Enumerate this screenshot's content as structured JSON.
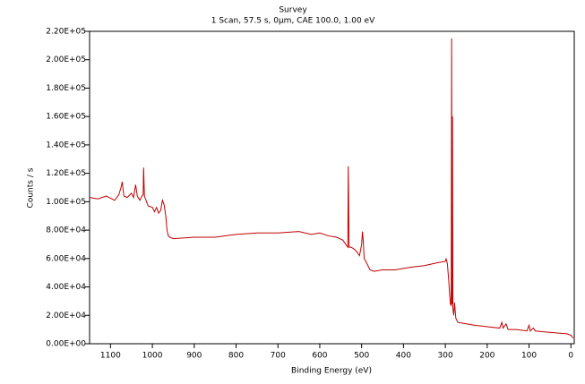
{
  "chart_data": {
    "type": "line",
    "title": "Survey",
    "subtitle": "1 Scan, 57.5 s, 0µm, CAE 100.0, 1.00 eV",
    "x_label": "Binding Energy (eV)",
    "y_label": "Counts / s",
    "xlim": [
      1150,
      -8
    ],
    "ylim": [
      0,
      220000
    ],
    "xticks": [
      1100,
      1000,
      900,
      800,
      700,
      600,
      500,
      400,
      300,
      200,
      100,
      0
    ],
    "yticks": [
      {
        "value": 0,
        "label": "0.00E+00"
      },
      {
        "value": 20000,
        "label": "2.00E+04"
      },
      {
        "value": 40000,
        "label": "4.00E+04"
      },
      {
        "value": 60000,
        "label": "6.00E+04"
      },
      {
        "value": 80000,
        "label": "8.00E+04"
      },
      {
        "value": 100000,
        "label": "1.00E+05"
      },
      {
        "value": 120000,
        "label": "1.20E+05"
      },
      {
        "value": 140000,
        "label": "1.40E+05"
      },
      {
        "value": 160000,
        "label": "1.60E+05"
      },
      {
        "value": 180000,
        "label": "1.80E+05"
      },
      {
        "value": 200000,
        "label": "2.00E+05"
      },
      {
        "value": 220000,
        "label": "2.20E+05"
      }
    ],
    "color": "#c00000",
    "x": [
      1150,
      1130,
      1110,
      1090,
      1080,
      1075,
      1072,
      1068,
      1060,
      1050,
      1045,
      1040,
      1036,
      1030,
      1025,
      1022,
      1021,
      1019,
      1010,
      1000,
      995,
      990,
      985,
      980,
      976,
      972,
      968,
      965,
      962,
      958,
      950,
      900,
      850,
      800,
      750,
      700,
      650,
      620,
      600,
      580,
      560,
      545,
      538,
      533,
      532,
      530,
      525,
      520,
      515,
      510,
      505,
      500,
      498,
      496,
      494,
      490,
      485,
      480,
      470,
      450,
      420,
      400,
      380,
      350,
      320,
      300,
      298,
      295,
      292,
      290,
      288,
      286,
      285,
      284,
      283,
      282,
      280,
      278,
      275,
      270,
      250,
      230,
      200,
      170,
      165,
      162,
      155,
      150,
      130,
      105,
      100,
      97,
      90,
      85,
      70,
      50,
      30,
      10,
      0,
      -5
    ],
    "values": [
      103000,
      102000,
      104000,
      101000,
      105000,
      110000,
      114000,
      104000,
      103000,
      106000,
      103000,
      112000,
      104000,
      101000,
      104000,
      105000,
      124000,
      104000,
      97000,
      96000,
      93000,
      96000,
      92000,
      94000,
      101000,
      98000,
      90000,
      80000,
      76000,
      75000,
      74000,
      75000,
      75000,
      77000,
      78000,
      78000,
      79000,
      77000,
      78000,
      76000,
      75000,
      73000,
      70000,
      68000,
      125000,
      68000,
      68000,
      67000,
      66000,
      64000,
      62000,
      70000,
      79000,
      72000,
      60000,
      58000,
      55000,
      52000,
      51000,
      52000,
      52000,
      53000,
      54000,
      55000,
      57000,
      58000,
      60000,
      56000,
      45000,
      36000,
      28000,
      27000,
      215000,
      28000,
      160000,
      25000,
      20000,
      29000,
      18000,
      15000,
      14000,
      13000,
      12000,
      11000,
      15000,
      11000,
      14000,
      10000,
      10000,
      9000,
      13000,
      9000,
      11000,
      9000,
      8500,
      8000,
      7500,
      7000,
      6000,
      4000
    ]
  }
}
